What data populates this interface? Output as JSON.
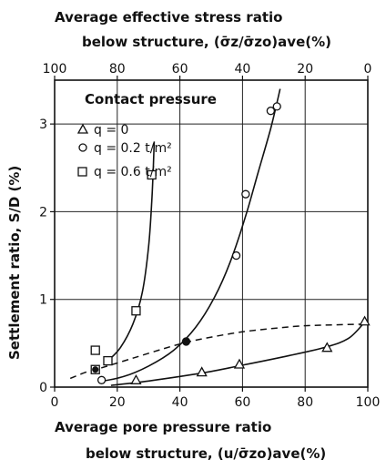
{
  "chart_data": {
    "type": "scatter",
    "top_title_line1": "Average effective stress ratio",
    "top_title_line2": "below structure,  (σ̄z/σ̄zo)ave(%)",
    "xlabel_line1": "Average pore pressure ratio",
    "xlabel_line2": "below structure,  (u/σ̄zo)ave(%)",
    "ylabel": "Settlement ratio,   S/D  (%)",
    "xlim": [
      0,
      100
    ],
    "ylim": [
      0,
      3.5
    ],
    "x_ticks": [
      "0",
      "20",
      "40",
      "60",
      "80",
      "100"
    ],
    "top_ticks": [
      "100",
      "80",
      "60",
      "40",
      "20",
      "0"
    ],
    "y_ticks": [
      "0",
      "1",
      "2",
      "3"
    ],
    "grid": true,
    "legend_title": "Contact pressure",
    "legend_position": "top-left",
    "series": [
      {
        "name": "q = 0",
        "marker": "triangle",
        "points": [
          [
            26,
            0.08
          ],
          [
            47,
            0.17
          ],
          [
            59,
            0.26
          ],
          [
            87,
            0.45
          ],
          [
            99,
            0.75
          ]
        ],
        "curve": [
          [
            18,
            0.02
          ],
          [
            30,
            0.07
          ],
          [
            47,
            0.16
          ],
          [
            60,
            0.25
          ],
          [
            75,
            0.36
          ],
          [
            87,
            0.46
          ],
          [
            94,
            0.56
          ],
          [
            99,
            0.74
          ]
        ]
      },
      {
        "name": "q = 0.2 t/m²",
        "marker": "circle",
        "points": [
          [
            15,
            0.08
          ],
          [
            42,
            0.52
          ],
          [
            58,
            1.5
          ],
          [
            61,
            2.2
          ],
          [
            69,
            3.15
          ],
          [
            71,
            3.2
          ]
        ],
        "curve": [
          [
            14,
            0.06
          ],
          [
            22,
            0.12
          ],
          [
            30,
            0.24
          ],
          [
            38,
            0.42
          ],
          [
            45,
            0.68
          ],
          [
            51,
            1.02
          ],
          [
            56,
            1.42
          ],
          [
            61,
            1.95
          ],
          [
            65,
            2.45
          ],
          [
            69,
            2.95
          ],
          [
            72,
            3.4
          ]
        ]
      },
      {
        "name": "q = 0.6 t/m²",
        "marker": "square",
        "points": [
          [
            13,
            0.2
          ],
          [
            13,
            0.42
          ],
          [
            17,
            0.3
          ],
          [
            26,
            0.87
          ],
          [
            31,
            2.42
          ]
        ],
        "curve": [
          [
            17,
            0.3
          ],
          [
            21,
            0.45
          ],
          [
            25,
            0.72
          ],
          [
            28,
            1.08
          ],
          [
            30,
            1.6
          ],
          [
            31,
            2.1
          ],
          [
            31.5,
            2.5
          ],
          [
            31.8,
            2.8
          ]
        ]
      }
    ],
    "dashed_curve": [
      [
        5,
        0.1
      ],
      [
        10,
        0.17
      ],
      [
        15,
        0.22
      ],
      [
        25,
        0.33
      ],
      [
        35,
        0.44
      ],
      [
        42,
        0.51
      ],
      [
        50,
        0.57
      ],
      [
        60,
        0.63
      ],
      [
        70,
        0.67
      ],
      [
        80,
        0.7
      ],
      [
        90,
        0.71
      ],
      [
        100,
        0.72
      ]
    ],
    "highlight_points": [
      [
        13,
        0.2
      ],
      [
        42,
        0.52
      ]
    ]
  }
}
